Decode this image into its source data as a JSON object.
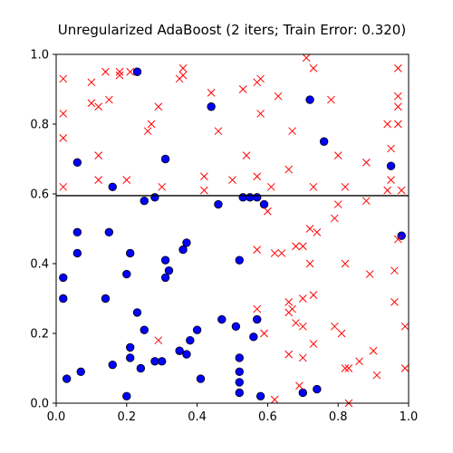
{
  "chart_data": {
    "type": "scatter",
    "title": "Unregularized AdaBoost (2 iters; Train Error: 0.320)",
    "xlim": [
      0,
      1
    ],
    "ylim": [
      0,
      1
    ],
    "x_ticks": [
      "0.0",
      "0.2",
      "0.4",
      "0.6",
      "0.8",
      "1.0"
    ],
    "y_ticks": [
      "0.0",
      "0.2",
      "0.4",
      "0.6",
      "0.8",
      "1.0"
    ],
    "grid": false,
    "decision_boundary": {
      "type": "horizontal_line",
      "y": 0.595,
      "color": "#000000"
    },
    "series": [
      {
        "marker": "circle",
        "color": "#0000ff",
        "edge_color": "#000000",
        "points": [
          [
            0.23,
            0.95
          ],
          [
            0.44,
            0.85
          ],
          [
            0.72,
            0.87
          ],
          [
            0.76,
            0.75
          ],
          [
            0.06,
            0.69
          ],
          [
            0.31,
            0.7
          ],
          [
            0.95,
            0.68
          ],
          [
            0.16,
            0.62
          ],
          [
            0.28,
            0.59
          ],
          [
            0.25,
            0.58
          ],
          [
            0.46,
            0.57
          ],
          [
            0.53,
            0.59
          ],
          [
            0.55,
            0.59
          ],
          [
            0.57,
            0.59
          ],
          [
            0.59,
            0.57
          ],
          [
            0.06,
            0.49
          ],
          [
            0.15,
            0.49
          ],
          [
            0.06,
            0.43
          ],
          [
            0.21,
            0.43
          ],
          [
            0.37,
            0.46
          ],
          [
            0.36,
            0.44
          ],
          [
            0.31,
            0.41
          ],
          [
            0.32,
            0.38
          ],
          [
            0.31,
            0.36
          ],
          [
            0.2,
            0.37
          ],
          [
            0.52,
            0.41
          ],
          [
            0.98,
            0.48
          ],
          [
            0.02,
            0.36
          ],
          [
            0.02,
            0.3
          ],
          [
            0.14,
            0.3
          ],
          [
            0.23,
            0.26
          ],
          [
            0.25,
            0.21
          ],
          [
            0.4,
            0.21
          ],
          [
            0.38,
            0.18
          ],
          [
            0.35,
            0.15
          ],
          [
            0.37,
            0.14
          ],
          [
            0.47,
            0.24
          ],
          [
            0.51,
            0.22
          ],
          [
            0.57,
            0.24
          ],
          [
            0.56,
            0.19
          ],
          [
            0.21,
            0.16
          ],
          [
            0.21,
            0.13
          ],
          [
            0.28,
            0.12
          ],
          [
            0.3,
            0.12
          ],
          [
            0.24,
            0.1
          ],
          [
            0.16,
            0.11
          ],
          [
            0.07,
            0.09
          ],
          [
            0.03,
            0.07
          ],
          [
            0.41,
            0.07
          ],
          [
            0.52,
            0.13
          ],
          [
            0.52,
            0.09
          ],
          [
            0.52,
            0.06
          ],
          [
            0.52,
            0.03
          ],
          [
            0.58,
            0.02
          ],
          [
            0.7,
            0.03
          ],
          [
            0.74,
            0.04
          ],
          [
            0.2,
            0.02
          ]
        ]
      },
      {
        "marker": "x",
        "color": "#ff0000",
        "points": [
          [
            0.02,
            0.93
          ],
          [
            0.02,
            0.83
          ],
          [
            0.02,
            0.76
          ],
          [
            0.02,
            0.62
          ],
          [
            0.1,
            0.92
          ],
          [
            0.1,
            0.86
          ],
          [
            0.12,
            0.85
          ],
          [
            0.14,
            0.95
          ],
          [
            0.15,
            0.87
          ],
          [
            0.18,
            0.95
          ],
          [
            0.18,
            0.94
          ],
          [
            0.21,
            0.95
          ],
          [
            0.29,
            0.85
          ],
          [
            0.27,
            0.8
          ],
          [
            0.26,
            0.78
          ],
          [
            0.36,
            0.96
          ],
          [
            0.35,
            0.93
          ],
          [
            0.36,
            0.94
          ],
          [
            0.44,
            0.89
          ],
          [
            0.46,
            0.78
          ],
          [
            0.53,
            0.9
          ],
          [
            0.57,
            0.92
          ],
          [
            0.58,
            0.93
          ],
          [
            0.58,
            0.83
          ],
          [
            0.63,
            0.88
          ],
          [
            0.67,
            0.78
          ],
          [
            0.71,
            0.99
          ],
          [
            0.73,
            0.96
          ],
          [
            0.78,
            0.87
          ],
          [
            0.8,
            0.71
          ],
          [
            0.88,
            0.69
          ],
          [
            0.97,
            0.96
          ],
          [
            0.97,
            0.88
          ],
          [
            0.97,
            0.85
          ],
          [
            0.97,
            0.8
          ],
          [
            0.94,
            0.8
          ],
          [
            0.95,
            0.73
          ],
          [
            0.95,
            0.64
          ],
          [
            0.94,
            0.61
          ],
          [
            0.98,
            0.61
          ],
          [
            0.12,
            0.71
          ],
          [
            0.12,
            0.64
          ],
          [
            0.2,
            0.64
          ],
          [
            0.3,
            0.62
          ],
          [
            0.42,
            0.61
          ],
          [
            0.42,
            0.65
          ],
          [
            0.5,
            0.64
          ],
          [
            0.54,
            0.71
          ],
          [
            0.57,
            0.65
          ],
          [
            0.61,
            0.62
          ],
          [
            0.66,
            0.67
          ],
          [
            0.73,
            0.62
          ],
          [
            0.82,
            0.62
          ],
          [
            0.88,
            0.58
          ],
          [
            0.6,
            0.55
          ],
          [
            0.8,
            0.57
          ],
          [
            0.79,
            0.53
          ],
          [
            0.72,
            0.5
          ],
          [
            0.74,
            0.49
          ],
          [
            0.68,
            0.45
          ],
          [
            0.7,
            0.45
          ],
          [
            0.64,
            0.43
          ],
          [
            0.62,
            0.43
          ],
          [
            0.57,
            0.44
          ],
          [
            0.97,
            0.47
          ],
          [
            0.72,
            0.4
          ],
          [
            0.82,
            0.4
          ],
          [
            0.89,
            0.37
          ],
          [
            0.96,
            0.38
          ],
          [
            0.96,
            0.29
          ],
          [
            0.99,
            0.22
          ],
          [
            0.99,
            0.1
          ],
          [
            0.73,
            0.31
          ],
          [
            0.7,
            0.3
          ],
          [
            0.66,
            0.29
          ],
          [
            0.66,
            0.26
          ],
          [
            0.67,
            0.27
          ],
          [
            0.68,
            0.23
          ],
          [
            0.57,
            0.27
          ],
          [
            0.59,
            0.2
          ],
          [
            0.7,
            0.22
          ],
          [
            0.79,
            0.22
          ],
          [
            0.81,
            0.2
          ],
          [
            0.73,
            0.17
          ],
          [
            0.66,
            0.14
          ],
          [
            0.7,
            0.13
          ],
          [
            0.82,
            0.1
          ],
          [
            0.83,
            0.1
          ],
          [
            0.86,
            0.12
          ],
          [
            0.91,
            0.08
          ],
          [
            0.9,
            0.15
          ],
          [
            0.29,
            0.18
          ],
          [
            0.62,
            0.01
          ],
          [
            0.69,
            0.05
          ],
          [
            0.83,
            0.0
          ]
        ]
      }
    ]
  }
}
